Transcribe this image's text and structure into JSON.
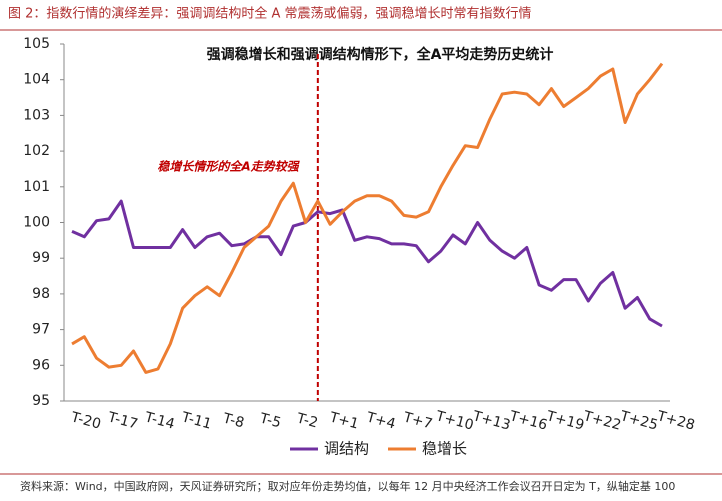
{
  "chart_data": {
    "type": "line",
    "title": "图 2：指数行情的演绎差异：强调调结构时全 A 常震荡或偏弱，强调稳增长时常有指数行情",
    "subtitle": "强调稳增长和强调调结构情形下，全A平均走势历史统计",
    "annotation": "稳增长情形的全A走势较强",
    "source": "资料来源：Wind，中国政府网，天风证券研究所；取对应年份走势均值，以每年 12 月中央经济工作会议召开日定为 T，纵轴定基 100",
    "categories": [
      "T-20",
      null,
      null,
      "T-17",
      null,
      null,
      "T-14",
      null,
      null,
      "T-11",
      null,
      null,
      "T-8",
      null,
      null,
      "T-5",
      null,
      null,
      "T-2",
      null,
      null,
      "T+1",
      null,
      null,
      "T+4",
      null,
      null,
      "T+7",
      null,
      null,
      "T+10",
      null,
      null,
      "T+13",
      null,
      null,
      "T+16",
      null,
      null,
      "T+19",
      null,
      null,
      "T+22",
      null,
      null,
      "T+25",
      null,
      null,
      "T+28"
    ],
    "series": [
      {
        "name": "调结构",
        "color": "#7030a0",
        "values": [
          99.75,
          99.6,
          100.05,
          100.1,
          100.6,
          99.3,
          99.3,
          99.3,
          99.3,
          99.8,
          99.3,
          99.6,
          99.7,
          99.35,
          99.4,
          99.6,
          99.6,
          99.1,
          99.9,
          100.0,
          100.3,
          100.25,
          100.35,
          99.5,
          99.6,
          99.55,
          99.4,
          99.4,
          99.35,
          98.9,
          99.2,
          99.65,
          99.4,
          100.0,
          99.5,
          99.2,
          99.0,
          99.3,
          98.25,
          98.1,
          98.4,
          98.4,
          97.8,
          98.3,
          98.6,
          97.6,
          97.9,
          97.3,
          97.1
        ]
      },
      {
        "name": "稳增长",
        "color": "#ed7d31",
        "values": [
          96.6,
          96.8,
          96.2,
          95.95,
          96.0,
          96.4,
          95.8,
          95.9,
          96.6,
          97.6,
          97.95,
          98.2,
          97.95,
          98.6,
          99.3,
          99.6,
          99.9,
          100.6,
          101.1,
          100.0,
          100.6,
          99.95,
          100.3,
          100.6,
          100.75,
          100.75,
          100.6,
          100.2,
          100.15,
          100.3,
          101.0,
          101.6,
          102.15,
          102.1,
          102.9,
          103.6,
          103.65,
          103.6,
          103.3,
          103.75,
          103.25,
          103.5,
          103.75,
          104.1,
          104.3,
          102.8,
          103.6,
          104.0,
          104.45
        ]
      }
    ],
    "ylim": [
      95,
      105
    ],
    "yticks": [
      95,
      96,
      97,
      98,
      99,
      100,
      101,
      102,
      103,
      104,
      105
    ],
    "marker_category": 20,
    "marker_color": "#c00000"
  }
}
